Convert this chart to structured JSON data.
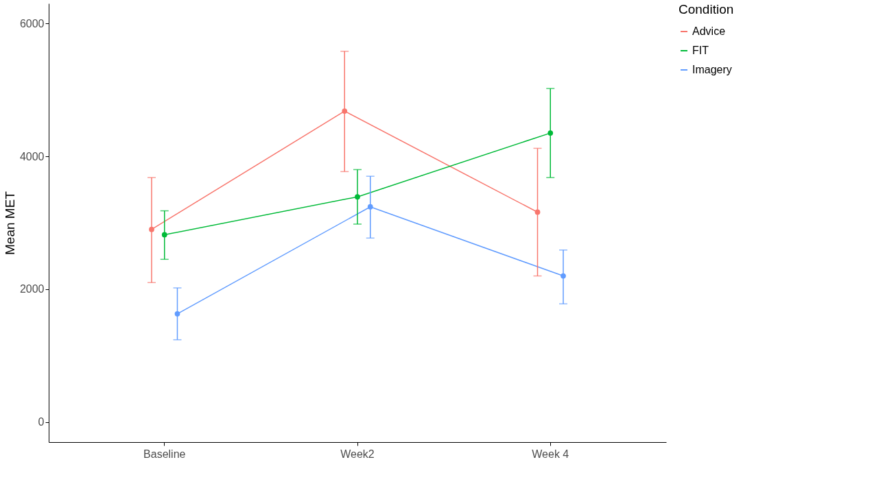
{
  "chart_data": {
    "type": "line",
    "categories": [
      "Baseline",
      "Week2",
      "Week 4"
    ],
    "ylabel": "Mean MET",
    "ylim": [
      -300,
      6300
    ],
    "yticks": [
      0,
      2000,
      4000,
      6000
    ],
    "legend": "right",
    "legend_title": "Condition",
    "marker": "circle",
    "line_style": "solid",
    "series": [
      {
        "name": "Advice",
        "color": "#f8766d",
        "values": [
          2900,
          4680,
          3160
        ],
        "errors": [
          [
            2100,
            3680
          ],
          [
            3770,
            5580
          ],
          [
            2200,
            4120
          ]
        ]
      },
      {
        "name": "FIT",
        "color": "#00ba38",
        "values": [
          2820,
          3390,
          4350
        ],
        "errors": [
          [
            2450,
            3180
          ],
          [
            2980,
            3800
          ],
          [
            3680,
            5020
          ]
        ]
      },
      {
        "name": "Imagery",
        "color": "#619cff",
        "values": [
          1630,
          3240,
          2200
        ],
        "errors": [
          [
            1240,
            2020
          ],
          [
            2770,
            3700
          ],
          [
            1780,
            2590
          ]
        ]
      }
    ]
  }
}
